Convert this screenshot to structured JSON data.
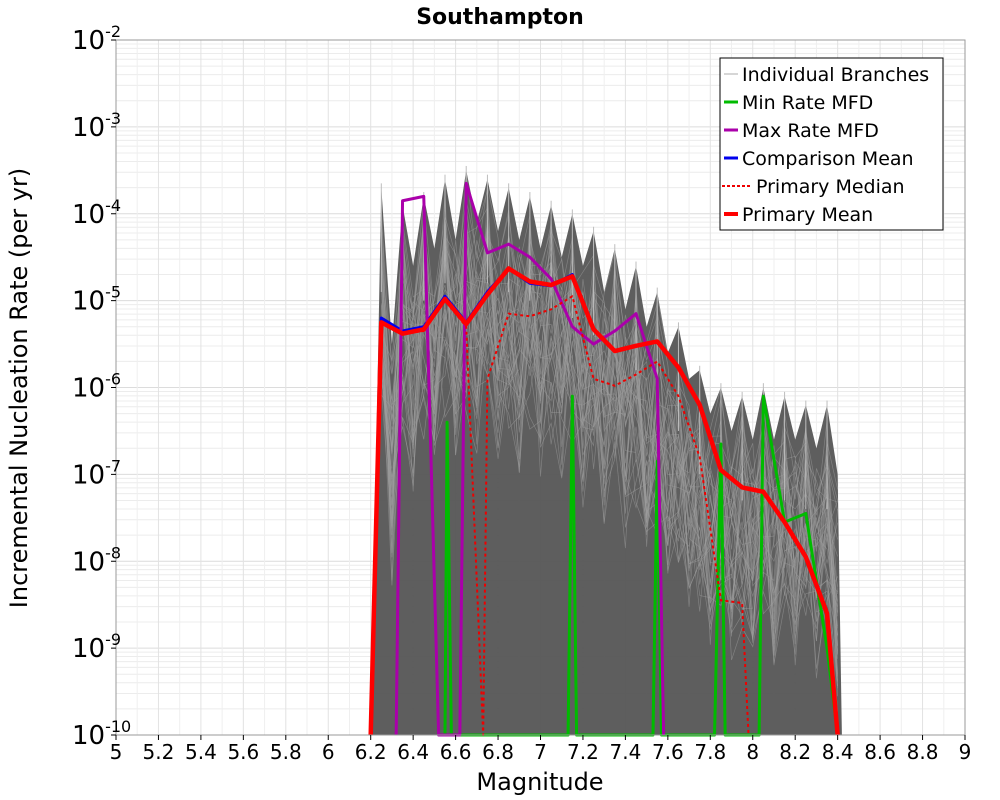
{
  "chart_data": {
    "type": "line",
    "title": "Southampton",
    "xlabel": "Magnitude",
    "ylabel": "Incremental Nucleation Rate (per yr)",
    "xlim": [
      5,
      9
    ],
    "ylim_log10": [
      -10,
      -2
    ],
    "y_scale": "log",
    "grid": true,
    "legend_position": "top-right",
    "x_ticks": [
      "5",
      "5.2",
      "5.4",
      "5.6",
      "5.8",
      "6",
      "6.2",
      "6.4",
      "6.6",
      "6.8",
      "7",
      "7.2",
      "7.4",
      "7.6",
      "7.8",
      "8",
      "8.2",
      "8.4",
      "8.6",
      "8.8",
      "9"
    ],
    "y_ticks": [
      {
        "base": "10",
        "exp": "-2"
      },
      {
        "base": "10",
        "exp": "-3"
      },
      {
        "base": "10",
        "exp": "-4"
      },
      {
        "base": "10",
        "exp": "-5"
      },
      {
        "base": "10",
        "exp": "-6"
      },
      {
        "base": "10",
        "exp": "-7"
      },
      {
        "base": "10",
        "exp": "-8"
      },
      {
        "base": "10",
        "exp": "-9"
      },
      {
        "base": "10",
        "exp": "-10"
      }
    ],
    "series": [
      {
        "name": "Individual Branches",
        "color": "#555555",
        "style": "band",
        "upper_log10": [
          [
            6.25,
            -3.7
          ],
          [
            6.3,
            -5.5
          ],
          [
            6.35,
            -3.9
          ],
          [
            6.4,
            -4.6
          ],
          [
            6.45,
            -3.8
          ],
          [
            6.5,
            -4.4
          ],
          [
            6.55,
            -3.6
          ],
          [
            6.6,
            -4.3
          ],
          [
            6.65,
            -3.5
          ],
          [
            6.7,
            -4.1
          ],
          [
            6.75,
            -3.6
          ],
          [
            6.8,
            -4.2
          ],
          [
            6.85,
            -3.7
          ],
          [
            6.9,
            -4.3
          ],
          [
            6.95,
            -3.8
          ],
          [
            7.0,
            -4.4
          ],
          [
            7.05,
            -3.9
          ],
          [
            7.1,
            -4.5
          ],
          [
            7.15,
            -4.0
          ],
          [
            7.2,
            -4.6
          ],
          [
            7.25,
            -4.2
          ],
          [
            7.3,
            -4.9
          ],
          [
            7.35,
            -4.4
          ],
          [
            7.4,
            -5.1
          ],
          [
            7.45,
            -4.6
          ],
          [
            7.5,
            -5.3
          ],
          [
            7.55,
            -4.9
          ],
          [
            7.6,
            -5.6
          ],
          [
            7.65,
            -5.3
          ],
          [
            7.7,
            -5.9
          ],
          [
            7.75,
            -5.8
          ],
          [
            7.8,
            -6.3
          ],
          [
            7.85,
            -6.0
          ],
          [
            7.9,
            -6.5
          ],
          [
            7.95,
            -6.1
          ],
          [
            8.0,
            -6.6
          ],
          [
            8.05,
            -6.0
          ],
          [
            8.1,
            -6.6
          ],
          [
            8.15,
            -6.1
          ],
          [
            8.2,
            -6.6
          ],
          [
            8.25,
            -6.2
          ],
          [
            8.3,
            -6.7
          ],
          [
            8.35,
            -6.2
          ],
          [
            8.4,
            -7.0
          ]
        ],
        "min_log10": -10
      },
      {
        "name": "Min Rate MFD",
        "color": "#00bb00",
        "width": 3,
        "dash": "",
        "points": [
          [
            6.55,
            -10
          ],
          [
            6.56,
            -6.4
          ],
          [
            6.58,
            -10
          ],
          [
            7.13,
            -10
          ],
          [
            7.15,
            -6.1
          ],
          [
            7.17,
            -10
          ],
          [
            7.53,
            -10
          ],
          [
            7.55,
            -6.85
          ],
          [
            7.57,
            -10
          ],
          [
            7.82,
            -10
          ],
          [
            7.85,
            -6.65
          ],
          [
            7.87,
            -10
          ],
          [
            8.03,
            -10
          ],
          [
            8.05,
            -6.1
          ],
          [
            8.15,
            -7.55
          ],
          [
            8.25,
            -7.45
          ],
          [
            8.35,
            -9.0
          ],
          [
            8.4,
            -10
          ]
        ]
      },
      {
        "name": "Max Rate MFD",
        "color": "#aa00aa",
        "width": 3,
        "dash": "",
        "points": [
          [
            6.32,
            -10
          ],
          [
            6.35,
            -3.85
          ],
          [
            6.45,
            -3.8
          ],
          [
            6.52,
            -10
          ],
          [
            6.62,
            -10
          ],
          [
            6.65,
            -3.65
          ],
          [
            6.75,
            -4.45
          ],
          [
            6.85,
            -4.35
          ],
          [
            6.95,
            -4.5
          ],
          [
            7.05,
            -4.75
          ],
          [
            7.15,
            -5.3
          ],
          [
            7.25,
            -5.5
          ],
          [
            7.35,
            -5.35
          ],
          [
            7.45,
            -5.15
          ],
          [
            7.55,
            -5.9
          ],
          [
            7.58,
            -10
          ]
        ]
      },
      {
        "name": "Comparison Mean",
        "color": "#0000ee",
        "width": 3,
        "dash": "",
        "points": [
          [
            6.2,
            -10
          ],
          [
            6.25,
            -5.2
          ],
          [
            6.35,
            -5.35
          ],
          [
            6.45,
            -5.3
          ],
          [
            6.55,
            -4.95
          ],
          [
            6.65,
            -5.25
          ],
          [
            6.75,
            -4.9
          ],
          [
            6.85,
            -4.63
          ],
          [
            6.95,
            -4.8
          ],
          [
            7.05,
            -4.83
          ],
          [
            7.15,
            -4.7
          ],
          [
            7.25,
            -5.33
          ],
          [
            7.35,
            -5.58
          ],
          [
            7.45,
            -5.52
          ],
          [
            7.55,
            -5.47
          ],
          [
            7.65,
            -5.77
          ],
          [
            7.75,
            -6.2
          ],
          [
            7.85,
            -6.95
          ],
          [
            7.95,
            -7.15
          ],
          [
            8.05,
            -7.2
          ],
          [
            8.15,
            -7.55
          ],
          [
            8.25,
            -7.95
          ],
          [
            8.35,
            -8.6
          ],
          [
            8.4,
            -10
          ]
        ]
      },
      {
        "name": "Primary Median",
        "color": "#ee0000",
        "width": 2,
        "dash": "3,3",
        "points": [
          [
            6.2,
            -10
          ],
          [
            6.25,
            -5.25
          ],
          [
            6.35,
            -5.38
          ],
          [
            6.45,
            -5.35
          ],
          [
            6.55,
            -5.0
          ],
          [
            6.65,
            -5.3
          ],
          [
            6.73,
            -10
          ],
          [
            6.75,
            -5.9
          ],
          [
            6.85,
            -5.15
          ],
          [
            6.95,
            -5.18
          ],
          [
            7.05,
            -5.1
          ],
          [
            7.15,
            -4.95
          ],
          [
            7.25,
            -5.9
          ],
          [
            7.35,
            -5.98
          ],
          [
            7.45,
            -5.85
          ],
          [
            7.55,
            -5.7
          ],
          [
            7.65,
            -6.1
          ],
          [
            7.75,
            -6.8
          ],
          [
            7.85,
            -8.45
          ],
          [
            7.95,
            -8.48
          ],
          [
            7.98,
            -10
          ]
        ]
      },
      {
        "name": "Primary Mean",
        "color": "#ff0000",
        "width": 4.5,
        "dash": "",
        "points": [
          [
            6.2,
            -10
          ],
          [
            6.25,
            -5.25
          ],
          [
            6.35,
            -5.38
          ],
          [
            6.45,
            -5.33
          ],
          [
            6.55,
            -4.98
          ],
          [
            6.65,
            -5.27
          ],
          [
            6.75,
            -4.93
          ],
          [
            6.85,
            -4.63
          ],
          [
            6.95,
            -4.78
          ],
          [
            7.05,
            -4.82
          ],
          [
            7.15,
            -4.72
          ],
          [
            7.25,
            -5.33
          ],
          [
            7.35,
            -5.58
          ],
          [
            7.45,
            -5.52
          ],
          [
            7.55,
            -5.47
          ],
          [
            7.65,
            -5.77
          ],
          [
            7.75,
            -6.2
          ],
          [
            7.85,
            -6.95
          ],
          [
            7.95,
            -7.15
          ],
          [
            8.05,
            -7.2
          ],
          [
            8.15,
            -7.55
          ],
          [
            8.25,
            -7.95
          ],
          [
            8.35,
            -8.6
          ],
          [
            8.4,
            -10
          ]
        ]
      }
    ]
  }
}
